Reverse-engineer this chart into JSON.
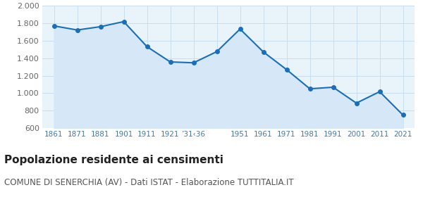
{
  "years": [
    1861,
    1871,
    1881,
    1901,
    1911,
    1921,
    1931,
    1936,
    1951,
    1961,
    1971,
    1981,
    1991,
    2001,
    2011,
    2021
  ],
  "values": [
    1771,
    1724,
    1762,
    1820,
    1533,
    1358,
    1348,
    1476,
    1735,
    1473,
    1270,
    1050,
    1068,
    886,
    1017,
    750
  ],
  "x_labels": [
    "1861",
    "1871",
    "1881",
    "1901",
    "1911",
    "1921",
    "’31‹36",
    "",
    "1951",
    "1961",
    "1971",
    "1981",
    "1991",
    "2001",
    "2011",
    "2021"
  ],
  "ylim": [
    600,
    2000
  ],
  "yticks": [
    600,
    800,
    1000,
    1200,
    1400,
    1600,
    1800,
    2000
  ],
  "line_color": "#1a6fba",
  "fill_color": "#d6e8f7",
  "marker_color": "#1a6fba",
  "grid_color": "#c8dded",
  "bg_color": "#e8f3fa",
  "title": "Popolazione residente ai censimenti",
  "subtitle": "COMUNE DI SENERCHIA (AV) - Dati ISTAT - Elaborazione TUTTITALIA.IT",
  "title_fontsize": 11,
  "subtitle_fontsize": 8.5,
  "tick_color": "#4477aa"
}
